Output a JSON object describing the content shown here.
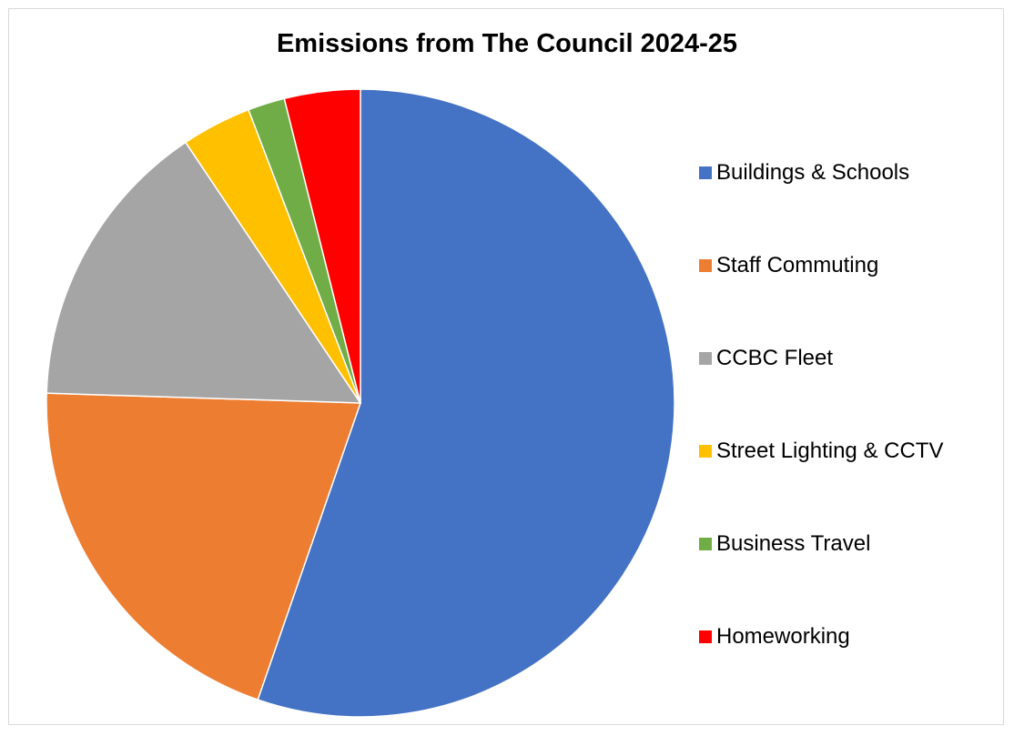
{
  "chart_data": {
    "type": "pie",
    "title": "Emissions from The Council 2024-25",
    "categories": [
      "Buildings & Schools",
      "Staff Commuting",
      "CCBC Fleet",
      "Street Lighting & CCTV",
      "Business Travel",
      "Homeworking"
    ],
    "values": [
      55.3,
      20.2,
      15.1,
      3.6,
      1.9,
      3.9
    ],
    "colors": [
      "#4472c4",
      "#ed7d31",
      "#a5a5a5",
      "#ffc000",
      "#70ad47",
      "#ff0000"
    ],
    "start_angle_deg": 0,
    "direction": "clockwise",
    "legend_position": "right",
    "xlabel": "",
    "ylabel": ""
  }
}
